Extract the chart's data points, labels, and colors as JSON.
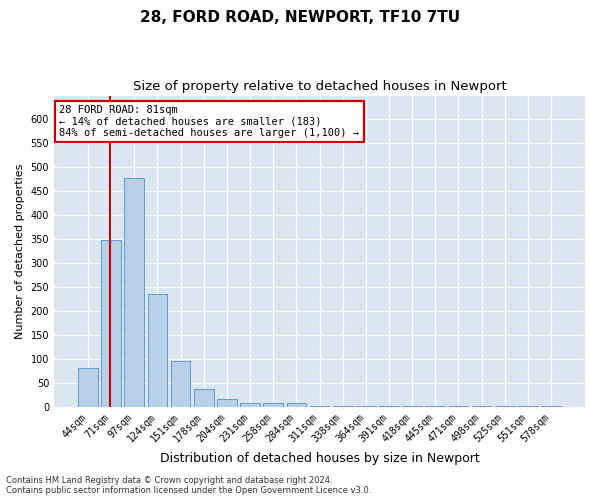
{
  "title": "28, FORD ROAD, NEWPORT, TF10 7TU",
  "subtitle": "Size of property relative to detached houses in Newport",
  "xlabel": "Distribution of detached houses by size in Newport",
  "ylabel": "Number of detached properties",
  "categories": [
    "44sqm",
    "71sqm",
    "97sqm",
    "124sqm",
    "151sqm",
    "178sqm",
    "204sqm",
    "231sqm",
    "258sqm",
    "284sqm",
    "311sqm",
    "338sqm",
    "364sqm",
    "391sqm",
    "418sqm",
    "445sqm",
    "471sqm",
    "498sqm",
    "525sqm",
    "551sqm",
    "578sqm"
  ],
  "values": [
    82,
    348,
    477,
    235,
    95,
    37,
    17,
    7,
    8,
    7,
    2,
    2,
    2,
    2,
    2,
    2,
    2,
    2,
    2,
    2,
    2
  ],
  "bar_color": "#b8d0e8",
  "bar_edge_color": "#5b9bd5",
  "background_color": "#dce6f0",
  "grid_color": "#ffffff",
  "marker_line_color": "#cc0000",
  "annotation_text": "28 FORD ROAD: 81sqm\n← 14% of detached houses are smaller (183)\n84% of semi-detached houses are larger (1,100) →",
  "annotation_box_facecolor": "#ffffff",
  "annotation_box_edgecolor": "#cc0000",
  "ylim_max": 650,
  "yticks": [
    0,
    50,
    100,
    150,
    200,
    250,
    300,
    350,
    400,
    450,
    500,
    550,
    600
  ],
  "footer_text": "Contains HM Land Registry data © Crown copyright and database right 2024.\nContains public sector information licensed under the Open Government Licence v3.0.",
  "title_fontsize": 11,
  "subtitle_fontsize": 9.5,
  "xlabel_fontsize": 9,
  "ylabel_fontsize": 8,
  "tick_fontsize": 7,
  "annot_fontsize": 7.5
}
